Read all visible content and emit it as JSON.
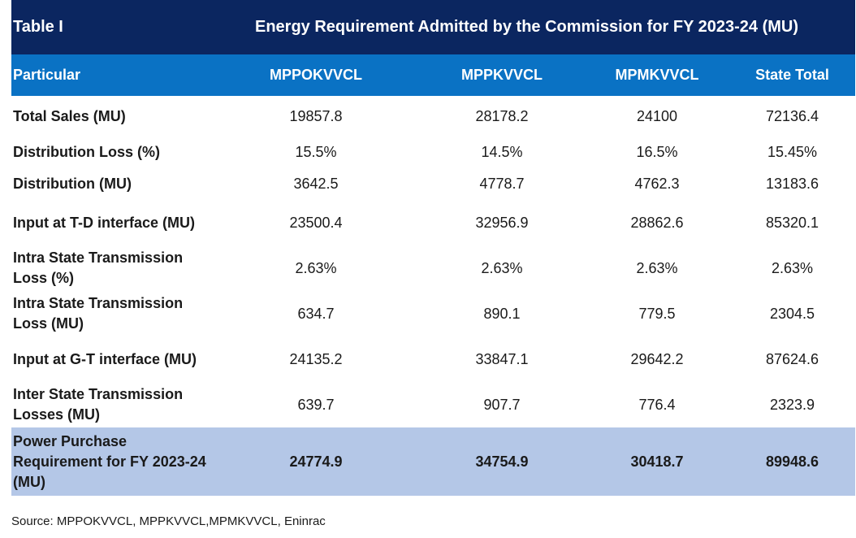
{
  "table": {
    "id_label": "Table I",
    "title": "Energy Requirement Admitted by the Commission for FY 2023-24 (MU)",
    "headers": [
      "Particular",
      "MPPOKVVCL",
      "MPPKVVCL",
      "MPMKVVCL",
      "State Total"
    ],
    "rows": [
      {
        "particular": "Total Sales (MU)",
        "v1": "19857.8",
        "v2": "28178.2",
        "v3": "24100",
        "v4": "72136.4"
      },
      {
        "particular": "Distribution Loss (%)",
        "v1": "15.5%",
        "v2": "14.5%",
        "v3": "16.5%",
        "v4": "15.45%"
      },
      {
        "particular": "Distribution (MU)",
        "v1": "3642.5",
        "v2": "4778.7",
        "v3": "4762.3",
        "v4": "13183.6"
      },
      {
        "particular": "Input at T-D interface (MU)",
        "v1": "23500.4",
        "v2": "32956.9",
        "v3": "28862.6",
        "v4": "85320.1"
      },
      {
        "particular": "Intra State Transmission Loss (%)",
        "v1": "2.63%",
        "v2": "2.63%",
        "v3": "2.63%",
        "v4": "2.63%"
      },
      {
        "particular": "Intra State Transmission Loss (MU)",
        "v1": "634.7",
        "v2": "890.1",
        "v3": "779.5",
        "v4": "2304.5"
      },
      {
        "particular": "Input at G-T interface (MU)",
        "v1": "24135.2",
        "v2": "33847.1",
        "v3": "29642.2",
        "v4": "87624.6"
      },
      {
        "particular": "Inter State Transmission Losses (MU)",
        "v1": "639.7",
        "v2": "907.7",
        "v3": "776.4",
        "v4": "2323.9"
      },
      {
        "particular": "Power Purchase Requirement for FY 2023-24 (MU)",
        "v1": "24774.9",
        "v2": "34754.9",
        "v3": "30418.7",
        "v4": "89948.6"
      }
    ]
  },
  "source": "Source: MPPOKVVCL, MPPKVVCL,MPMKVVCL, Eninrac",
  "colors": {
    "title_bg": "#0b2660",
    "header_bg": "#0a72c4",
    "highlight_bg": "#b4c7e7"
  }
}
